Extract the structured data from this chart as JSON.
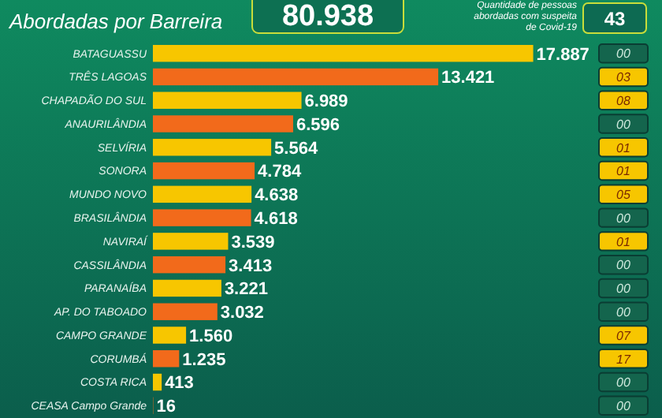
{
  "chart_data": {
    "type": "bar",
    "orientation": "horizontal",
    "title": "Abordadas por Barreira",
    "categories": [
      "BATAGUASSU",
      "TRÊS LAGOAS",
      "CHAPADÃO DO SUL",
      "ANAURILÂNDIA",
      "SELVÍRIA",
      "SONORA",
      "MUNDO NOVO",
      "BRASILÂNDIA",
      "NAVIRAÍ",
      "CASSILÂNDIA",
      "PARANAÍBA",
      "AP. DO TABOADO",
      "CAMPO GRANDE",
      "CORUMBÁ",
      "COSTA RICA",
      "CEASA Campo Grande"
    ],
    "values": [
      17887,
      13421,
      6989,
      6596,
      5564,
      4784,
      4638,
      4618,
      3539,
      3413,
      3221,
      3032,
      1560,
      1235,
      413,
      16
    ],
    "colors": [
      "#f7c600",
      "#f26a1b",
      "#f7c600",
      "#f26a1b",
      "#f7c600",
      "#f26a1b",
      "#f7c600",
      "#f26a1b",
      "#f7c600",
      "#f26a1b",
      "#f7c600",
      "#f26a1b",
      "#f7c600",
      "#f26a1b",
      "#f7c600",
      "#f26a1b"
    ],
    "value_labels": [
      "17.887",
      "13.421",
      "6.989",
      "6.596",
      "5.564",
      "4.784",
      "4.638",
      "4.618",
      "3.539",
      "3.413",
      "3.221",
      "3.032",
      "1.560",
      "1.235",
      "413",
      "16"
    ],
    "tick_labels": "y",
    "annotations": [
      "80.938",
      "Quantidade de pessoas abordadas com suspeita de Covid-19",
      "43",
      "00",
      "03",
      "08",
      "00",
      "01",
      "01",
      "05",
      "00",
      "01",
      "00",
      "00",
      "00",
      "07",
      "17",
      "00",
      "00"
    ]
  }
}
